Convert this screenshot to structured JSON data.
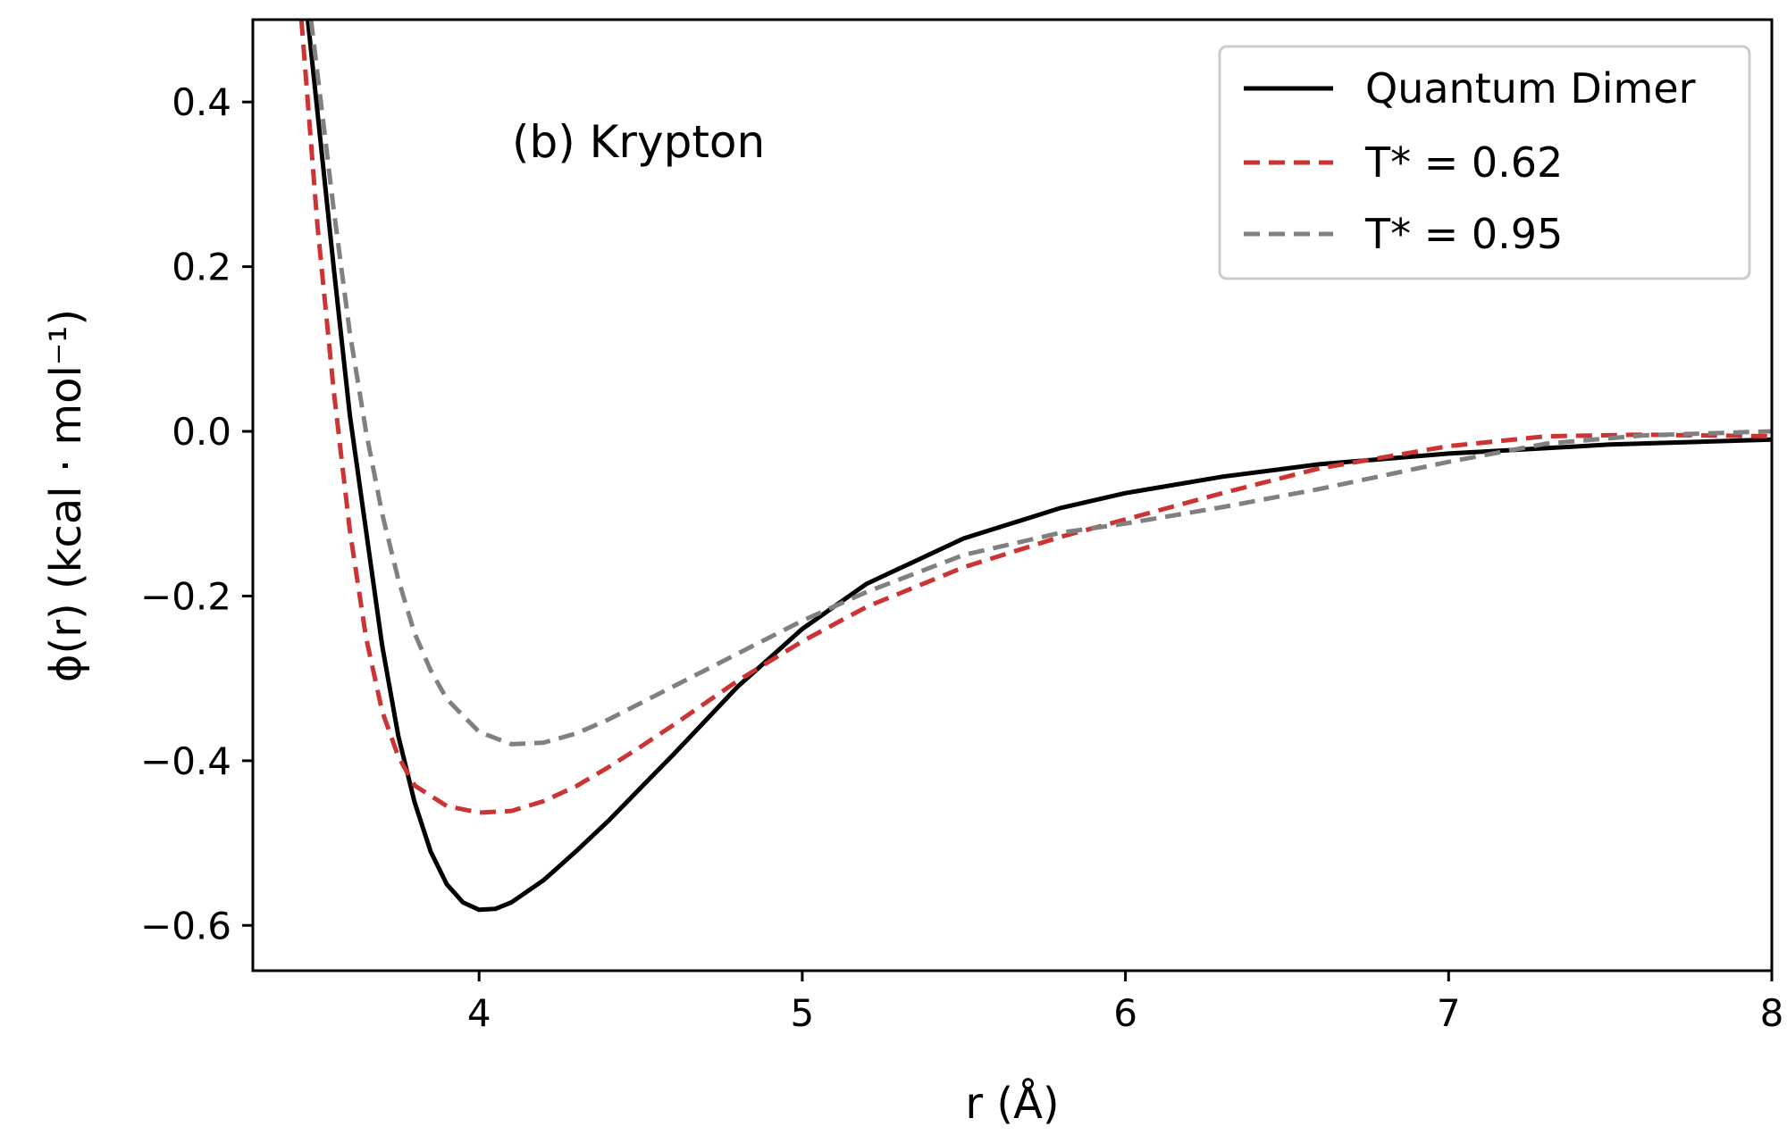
{
  "chart_data": {
    "type": "line",
    "xlabel": "r (Å)",
    "ylabel": "ϕ(r) (kcal · mol⁻¹)",
    "xlim": [
      3.3,
      8.0
    ],
    "ylim": [
      -0.655,
      0.5
    ],
    "xticks": [
      4,
      5,
      6,
      7,
      8
    ],
    "yticks": [
      0.4,
      0.2,
      0.0,
      -0.2,
      -0.4,
      -0.6
    ],
    "xtick_labels": [
      "4",
      "5",
      "6",
      "7",
      "8"
    ],
    "ytick_labels": [
      "0.4",
      "0.2",
      "0.0",
      "−0.2",
      "−0.4",
      "−0.6"
    ],
    "grid": false,
    "legend_position": "top-right",
    "annotation": "(b) Krypton",
    "series": [
      {
        "name": "Quantum Dimer",
        "color": "#000000",
        "style": "solid",
        "x": [
          3.47,
          3.55,
          3.6,
          3.65,
          3.7,
          3.75,
          3.8,
          3.85,
          3.9,
          3.95,
          4.0,
          4.05,
          4.1,
          4.2,
          4.3,
          4.4,
          4.5,
          4.6,
          4.8,
          5.0,
          5.2,
          5.5,
          5.8,
          6.0,
          6.3,
          6.6,
          7.0,
          7.5,
          8.0
        ],
        "y": [
          0.5,
          0.2,
          0.02,
          -0.12,
          -0.26,
          -0.37,
          -0.45,
          -0.51,
          -0.55,
          -0.572,
          -0.581,
          -0.58,
          -0.572,
          -0.545,
          -0.51,
          -0.473,
          -0.433,
          -0.393,
          -0.31,
          -0.24,
          -0.185,
          -0.13,
          -0.093,
          -0.075,
          -0.055,
          -0.04,
          -0.027,
          -0.016,
          -0.01
        ]
      },
      {
        "name": "T* = 0.62",
        "color": "#cc3333",
        "style": "dashed",
        "x": [
          3.45,
          3.5,
          3.55,
          3.6,
          3.65,
          3.7,
          3.75,
          3.8,
          3.9,
          4.0,
          4.1,
          4.2,
          4.3,
          4.4,
          4.5,
          4.6,
          4.8,
          5.0,
          5.2,
          5.5,
          5.8,
          6.0,
          6.3,
          6.6,
          7.0,
          7.3,
          7.6,
          8.0
        ],
        "y": [
          0.5,
          0.25,
          0.05,
          -0.12,
          -0.25,
          -0.34,
          -0.395,
          -0.43,
          -0.455,
          -0.463,
          -0.461,
          -0.449,
          -0.431,
          -0.408,
          -0.383,
          -0.357,
          -0.303,
          -0.255,
          -0.213,
          -0.165,
          -0.128,
          -0.107,
          -0.075,
          -0.045,
          -0.018,
          -0.006,
          -0.004,
          -0.006
        ]
      },
      {
        "name": "T* = 0.95",
        "color": "#808080",
        "style": "dashed",
        "x": [
          3.48,
          3.55,
          3.6,
          3.65,
          3.7,
          3.75,
          3.8,
          3.85,
          3.9,
          4.0,
          4.1,
          4.2,
          4.3,
          4.4,
          4.6,
          4.8,
          5.0,
          5.2,
          5.5,
          5.8,
          6.0,
          6.3,
          6.6,
          7.0,
          7.3,
          7.6,
          8.0
        ],
        "y": [
          0.5,
          0.27,
          0.12,
          0.0,
          -0.1,
          -0.18,
          -0.245,
          -0.29,
          -0.325,
          -0.365,
          -0.38,
          -0.378,
          -0.367,
          -0.35,
          -0.31,
          -0.27,
          -0.23,
          -0.195,
          -0.15,
          -0.123,
          -0.112,
          -0.092,
          -0.07,
          -0.037,
          -0.015,
          -0.005,
          0.0
        ]
      }
    ]
  }
}
